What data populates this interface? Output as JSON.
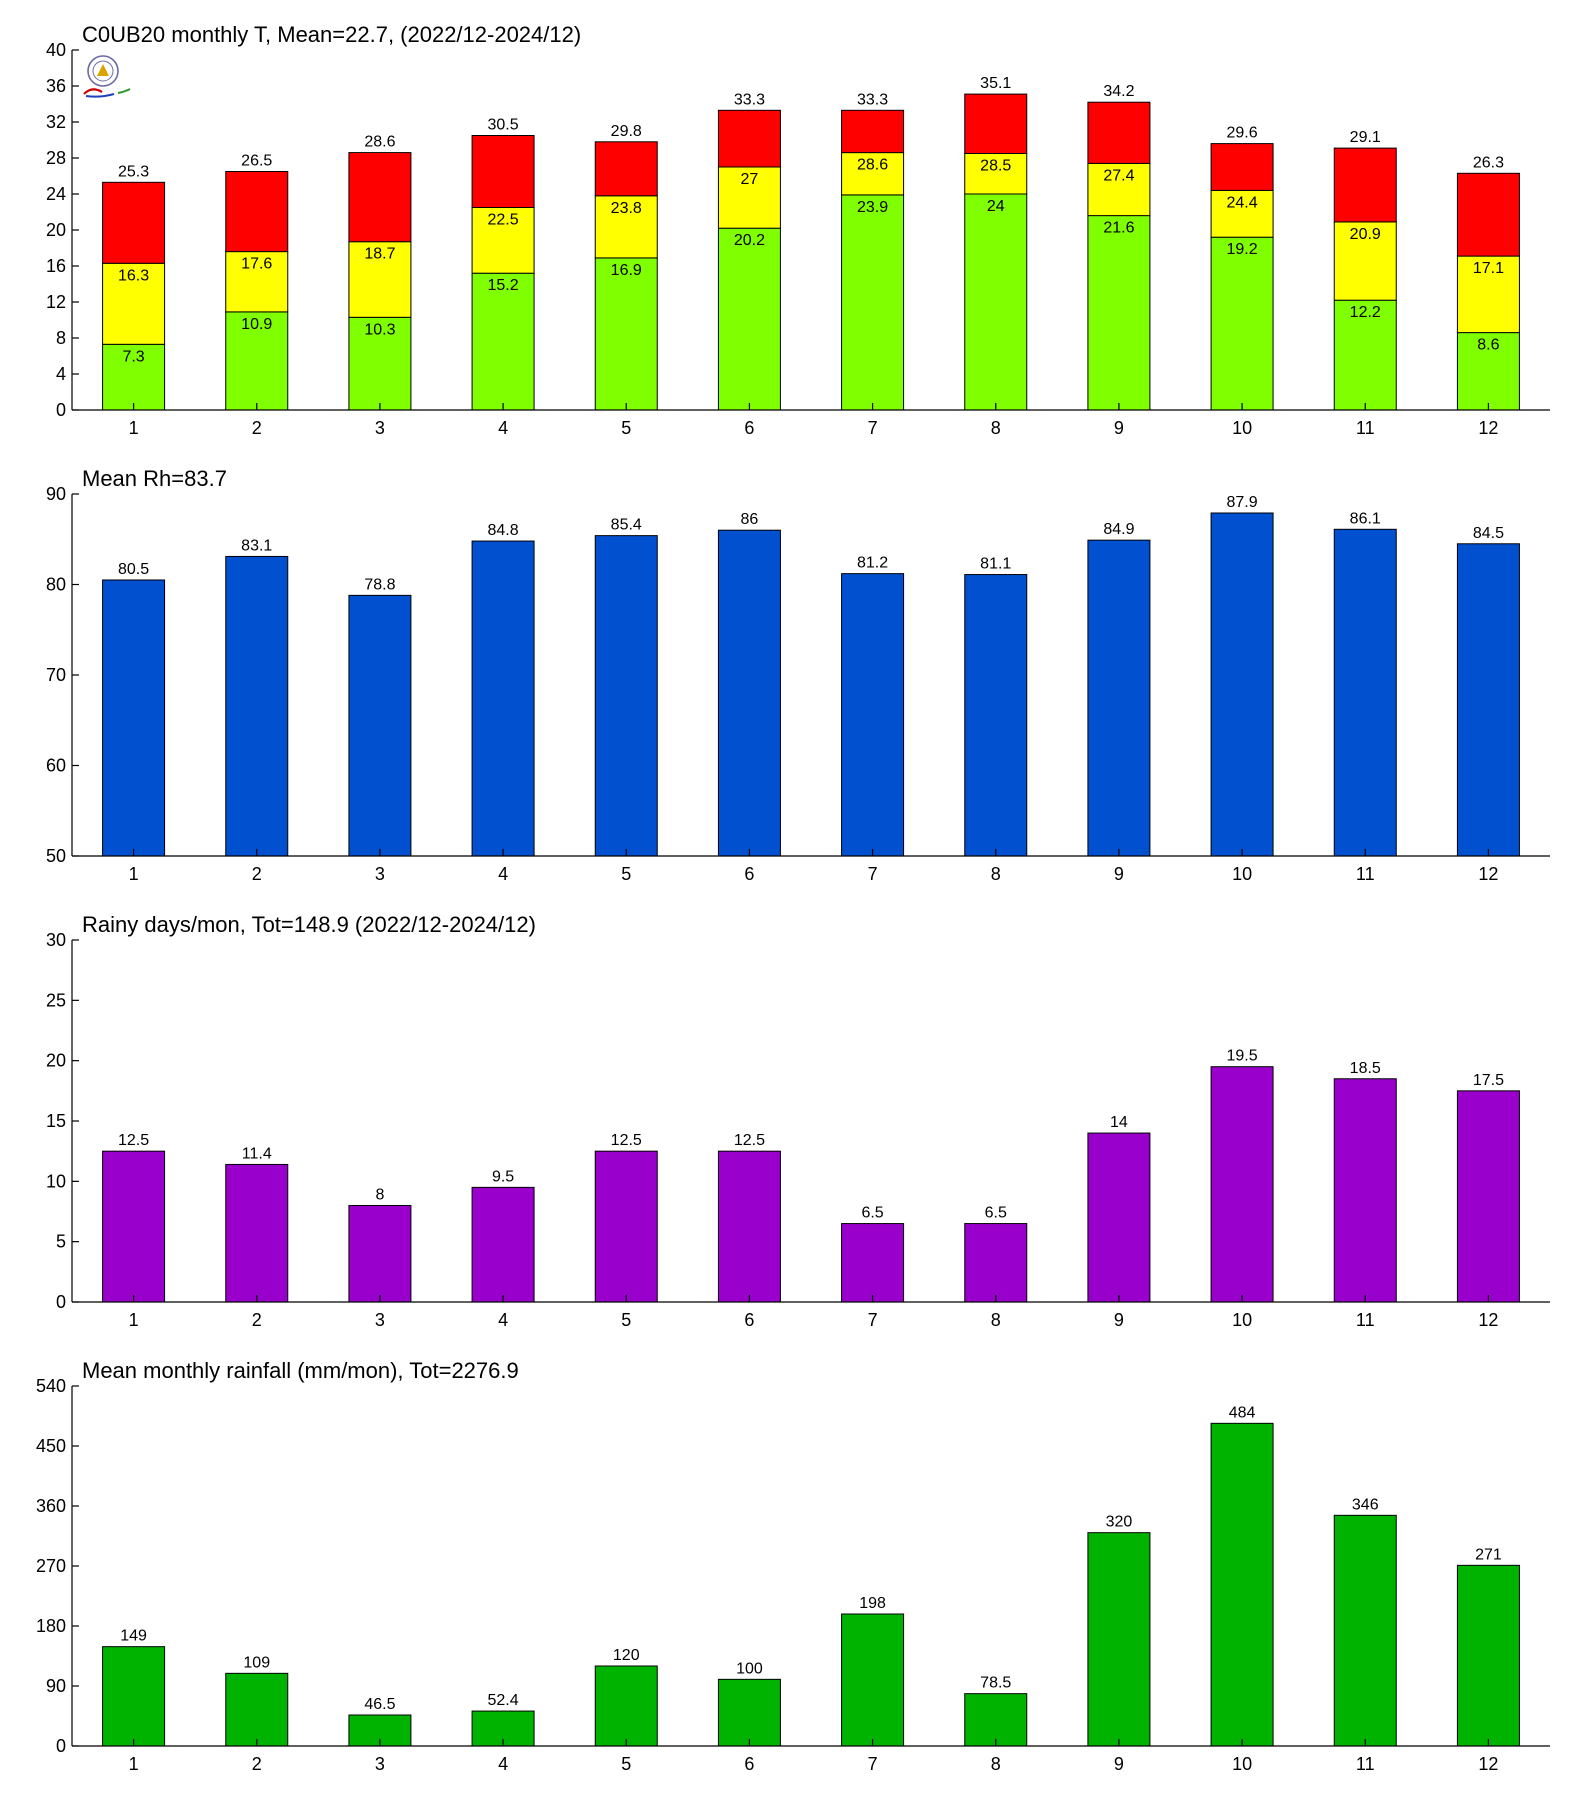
{
  "chart_data": [
    {
      "type": "bar",
      "stacked": true,
      "title": "C0UB20 monthly T, Mean=22.7, (2022/12-2024/12)",
      "categories": [
        "1",
        "2",
        "3",
        "4",
        "5",
        "6",
        "7",
        "8",
        "9",
        "10",
        "11",
        "12"
      ],
      "ylim": [
        0,
        40
      ],
      "yticks": [
        0,
        4,
        8,
        12,
        16,
        20,
        24,
        28,
        32,
        36,
        40
      ],
      "grid": false,
      "logo": "weather-bureau-logo",
      "levels": [
        {
          "color": "#80ff00",
          "values": [
            7.3,
            10.9,
            10.3,
            15.2,
            16.9,
            20.2,
            23.9,
            24,
            21.6,
            19.2,
            12.2,
            8.6
          ]
        },
        {
          "color": "#ffff00",
          "values": [
            16.3,
            17.6,
            18.7,
            22.5,
            23.8,
            27,
            28.6,
            28.5,
            27.4,
            24.4,
            20.9,
            17.1
          ]
        },
        {
          "color": "#ff0000",
          "values": [
            25.3,
            26.5,
            28.6,
            30.5,
            29.8,
            33.3,
            33.3,
            35.1,
            34.2,
            29.6,
            29.1,
            26.3
          ]
        }
      ]
    },
    {
      "type": "bar",
      "title": "Mean Rh=83.7",
      "categories": [
        "1",
        "2",
        "3",
        "4",
        "5",
        "6",
        "7",
        "8",
        "9",
        "10",
        "11",
        "12"
      ],
      "ylim": [
        50,
        90
      ],
      "yticks": [
        50,
        60,
        70,
        80,
        90
      ],
      "grid": false,
      "color": "#0050d0",
      "values": [
        80.5,
        83.1,
        78.8,
        84.8,
        85.4,
        86,
        81.2,
        81.1,
        84.9,
        87.9,
        86.1,
        84.5
      ]
    },
    {
      "type": "bar",
      "title": "Rainy days/mon, Tot=148.9 (2022/12-2024/12)",
      "categories": [
        "1",
        "2",
        "3",
        "4",
        "5",
        "6",
        "7",
        "8",
        "9",
        "10",
        "11",
        "12"
      ],
      "ylim": [
        0,
        30
      ],
      "yticks": [
        0,
        5,
        10,
        15,
        20,
        25,
        30
      ],
      "grid": false,
      "color": "#9900cc",
      "values": [
        12.5,
        11.4,
        8,
        9.5,
        12.5,
        12.5,
        6.5,
        6.5,
        14,
        19.5,
        18.5,
        17.5
      ]
    },
    {
      "type": "bar",
      "title": "Mean monthly rainfall (mm/mon), Tot=2276.9",
      "categories": [
        "1",
        "2",
        "3",
        "4",
        "5",
        "6",
        "7",
        "8",
        "9",
        "10",
        "11",
        "12"
      ],
      "ylim": [
        0,
        540
      ],
      "yticks": [
        0,
        90,
        180,
        270,
        360,
        450,
        540
      ],
      "grid": false,
      "color": "#00b300",
      "values": [
        149,
        109,
        46.5,
        52.4,
        120,
        100,
        198,
        78.5,
        320,
        484,
        346,
        271
      ]
    }
  ]
}
